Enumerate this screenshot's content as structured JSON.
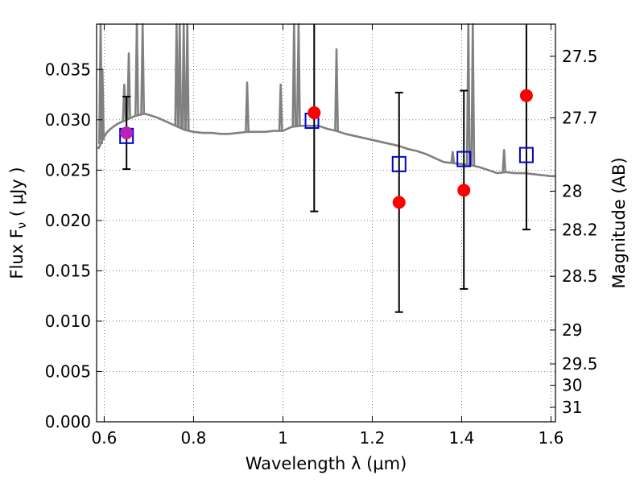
{
  "chart_data": {
    "type": "scatter",
    "title": "",
    "xlabel": "Wavelength  λ (μm)",
    "ylabel": "Flux  F",
    "ylabel_sub": "ν",
    "ylabel_unit": "  ( μJy )",
    "y2label": "Magnitude (AB)",
    "xlim": [
      0.583,
      1.61
    ],
    "ylim": [
      0.0,
      0.0395
    ],
    "x_ticks": [
      {
        "value": 0.6,
        "label": "0.6"
      },
      {
        "value": 0.8,
        "label": "0.8"
      },
      {
        "value": 1.0,
        "label": "1"
      },
      {
        "value": 1.2,
        "label": "1.2"
      },
      {
        "value": 1.4,
        "label": "1.4"
      },
      {
        "value": 1.6,
        "label": "1.6"
      }
    ],
    "y_ticks": [
      {
        "value": 0.0,
        "label": "0.000"
      },
      {
        "value": 0.005,
        "label": "0.005"
      },
      {
        "value": 0.01,
        "label": "0.010"
      },
      {
        "value": 0.015,
        "label": "0.015"
      },
      {
        "value": 0.02,
        "label": "0.020"
      },
      {
        "value": 0.025,
        "label": "0.025"
      },
      {
        "value": 0.03,
        "label": "0.030"
      },
      {
        "value": 0.035,
        "label": "0.035"
      }
    ],
    "y2_ticks": [
      {
        "value": 27.5,
        "label": "27.5"
      },
      {
        "value": 27.7,
        "label": "27.7"
      },
      {
        "value": 28.0,
        "label": "28"
      },
      {
        "value": 28.2,
        "label": "28.2"
      },
      {
        "value": 28.5,
        "label": "28.5"
      },
      {
        "value": 29.0,
        "label": "29"
      },
      {
        "value": 29.5,
        "label": "29.5"
      },
      {
        "value": 30.0,
        "label": "30"
      },
      {
        "value": 31.0,
        "label": "31"
      }
    ],
    "grid": true,
    "series": [
      {
        "name": "model spectrum",
        "kind": "line",
        "color": "#808080",
        "x": [
          0.585,
          0.588,
          0.592,
          0.596,
          0.6,
          0.605,
          0.612,
          0.62,
          0.63,
          0.64,
          0.65,
          0.66,
          0.67,
          0.68,
          0.69,
          0.7,
          0.72,
          0.74,
          0.76,
          0.78,
          0.8,
          0.82,
          0.84,
          0.86,
          0.88,
          0.9,
          0.92,
          0.94,
          0.96,
          0.98,
          1.0,
          1.01,
          1.02,
          1.04,
          1.06,
          1.08,
          1.1,
          1.12,
          1.14,
          1.16,
          1.18,
          1.2,
          1.22,
          1.24,
          1.26,
          1.28,
          1.3,
          1.32,
          1.34,
          1.36,
          1.38,
          1.4,
          1.42,
          1.44,
          1.46,
          1.48,
          1.5,
          1.52,
          1.54,
          1.56,
          1.58,
          1.6,
          1.61
        ],
        "y": [
          0.0272,
          0.0272,
          0.0276,
          0.028,
          0.0283,
          0.0287,
          0.029,
          0.0293,
          0.0296,
          0.0298,
          0.03,
          0.0302,
          0.0304,
          0.0305,
          0.0306,
          0.0305,
          0.0302,
          0.0298,
          0.0294,
          0.029,
          0.0288,
          0.0287,
          0.0287,
          0.0286,
          0.0286,
          0.0287,
          0.0288,
          0.0288,
          0.0288,
          0.0289,
          0.0289,
          0.0291,
          0.0293,
          0.0294,
          0.0294,
          0.0294,
          0.0291,
          0.0289,
          0.0286,
          0.0284,
          0.0282,
          0.028,
          0.0278,
          0.0276,
          0.0274,
          0.0271,
          0.0269,
          0.0266,
          0.0262,
          0.0258,
          0.0257,
          0.0256,
          0.0255,
          0.0253,
          0.025,
          0.0247,
          0.0248,
          0.0247,
          0.0247,
          0.0246,
          0.0245,
          0.0244,
          0.0244
        ]
      },
      {
        "name": "model photometry",
        "kind": "open-square",
        "color": "#0000cc",
        "x": [
          0.65,
          1.065,
          1.26,
          1.405,
          1.545
        ],
        "y": [
          0.0284,
          0.0299,
          0.0256,
          0.0261,
          0.0265
        ]
      },
      {
        "name": "observed photometry",
        "kind": "filled-circle",
        "color": "#ff0000",
        "x": [
          0.65,
          1.07,
          1.26,
          1.405,
          1.545
        ],
        "y": [
          0.0287,
          0.0307,
          0.0218,
          0.023,
          0.0324
        ],
        "yerr_low": [
          0.0251,
          0.0209,
          0.0109,
          0.0132,
          0.0191
        ],
        "yerr_high": [
          0.0323,
          0.0395,
          0.0327,
          0.0329,
          0.0395
        ]
      }
    ],
    "emission_spikes": [
      {
        "x": 0.592,
        "peak": 0.0395
      },
      {
        "x": 0.596,
        "peak": 0.035
      },
      {
        "x": 0.645,
        "peak": 0.0335
      },
      {
        "x": 0.655,
        "peak": 0.0366
      },
      {
        "x": 0.673,
        "peak": 0.0395
      },
      {
        "x": 0.686,
        "peak": 0.0395
      },
      {
        "x": 0.762,
        "peak": 0.0395
      },
      {
        "x": 0.769,
        "peak": 0.0395
      },
      {
        "x": 0.778,
        "peak": 0.0395
      },
      {
        "x": 0.786,
        "peak": 0.0395
      },
      {
        "x": 0.92,
        "peak": 0.0337
      },
      {
        "x": 0.995,
        "peak": 0.0335
      },
      {
        "x": 1.025,
        "peak": 0.0395
      },
      {
        "x": 1.035,
        "peak": 0.0395
      },
      {
        "x": 1.12,
        "peak": 0.037
      },
      {
        "x": 1.38,
        "peak": 0.0268
      },
      {
        "x": 1.415,
        "peak": 0.0395
      },
      {
        "x": 1.425,
        "peak": 0.0395
      },
      {
        "x": 1.495,
        "peak": 0.027
      }
    ]
  }
}
